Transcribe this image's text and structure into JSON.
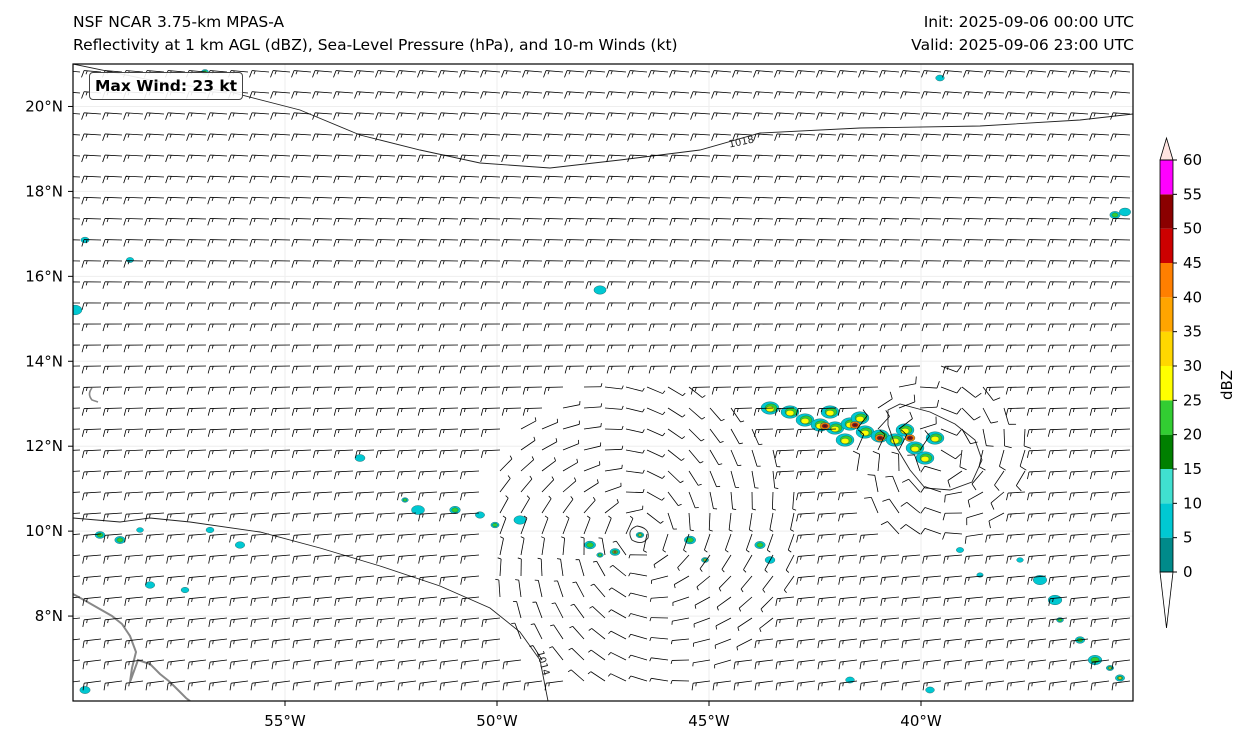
{
  "header": {
    "model_title": "NSF NCAR 3.75-km MPAS-A",
    "field_title": "Reflectivity at 1 km AGL (dBZ), Sea-Level Pressure (hPa), and 10-m Winds (kt)",
    "init_time": "Init: 2025-09-06 00:00 UTC",
    "valid_time": "Valid: 2025-09-06 23:00 UTC"
  },
  "annotation": {
    "max_wind": "Max Wind: 23 kt"
  },
  "map": {
    "lon_range": [
      -60,
      -35
    ],
    "lat_range": [
      6,
      21
    ],
    "lat_ticks": [
      "8°N",
      "10°N",
      "12°N",
      "14°N",
      "16°N",
      "18°N",
      "20°N"
    ],
    "lat_tick_values": [
      8,
      10,
      12,
      14,
      16,
      18,
      20
    ],
    "lon_ticks": [
      "55°W",
      "50°W",
      "45°W",
      "40°W"
    ],
    "lon_tick_values": [
      -55,
      -50,
      -45,
      -40
    ],
    "isobar_labels": [
      "1018",
      "1014"
    ],
    "colors": {
      "coastline": "#888888",
      "isobar": "#222222",
      "barb": "#000000",
      "frame": "#000000"
    }
  },
  "colorbar": {
    "label": "dBZ",
    "tick_labels": [
      "0",
      "5",
      "10",
      "15",
      "20",
      "25",
      "30",
      "35",
      "40",
      "45",
      "50",
      "55",
      "60"
    ],
    "levels": [
      0,
      5,
      10,
      15,
      20,
      25,
      30,
      35,
      40,
      45,
      50,
      55,
      60
    ],
    "colors": [
      "#008a8a",
      "#00c8d2",
      "#40e0d0",
      "#008000",
      "#32cd32",
      "#ffff00",
      "#ffd700",
      "#ffa500",
      "#ff7f00",
      "#cc0000",
      "#8b0000",
      "#ff00ff",
      "#ffe4e1"
    ]
  }
}
